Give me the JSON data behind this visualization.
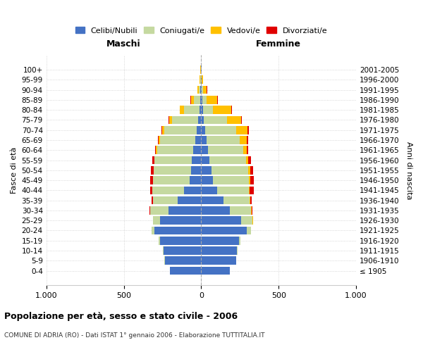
{
  "age_groups": [
    "100+",
    "95-99",
    "90-94",
    "85-89",
    "80-84",
    "75-79",
    "70-74",
    "65-69",
    "60-64",
    "55-59",
    "50-54",
    "45-49",
    "40-44",
    "35-39",
    "30-34",
    "25-29",
    "20-24",
    "15-19",
    "10-14",
    "5-9",
    "0-4"
  ],
  "birth_years": [
    "≤ 1905",
    "1906-1910",
    "1911-1915",
    "1916-1920",
    "1921-1925",
    "1926-1930",
    "1931-1935",
    "1936-1940",
    "1941-1945",
    "1946-1950",
    "1951-1955",
    "1956-1960",
    "1961-1965",
    "1966-1970",
    "1971-1975",
    "1976-1980",
    "1981-1985",
    "1986-1990",
    "1991-1995",
    "1996-2000",
    "2001-2005"
  ],
  "maschi": {
    "celibi": [
      2,
      3,
      4,
      8,
      12,
      18,
      30,
      40,
      50,
      60,
      65,
      75,
      110,
      150,
      210,
      265,
      300,
      265,
      245,
      235,
      200
    ],
    "coniugati": [
      1,
      4,
      12,
      40,
      100,
      170,
      210,
      225,
      235,
      240,
      240,
      235,
      205,
      160,
      120,
      45,
      20,
      8,
      4,
      2,
      1
    ],
    "vedovi": [
      1,
      2,
      8,
      18,
      25,
      18,
      12,
      8,
      6,
      4,
      3,
      2,
      2,
      1,
      1,
      1,
      0,
      0,
      0,
      0,
      0
    ],
    "divorziati": [
      0,
      0,
      0,
      2,
      2,
      4,
      6,
      8,
      8,
      12,
      15,
      18,
      12,
      8,
      4,
      2,
      1,
      1,
      0,
      0,
      0
    ]
  },
  "femmine": {
    "nubili": [
      2,
      2,
      4,
      6,
      10,
      15,
      25,
      35,
      45,
      55,
      65,
      75,
      105,
      145,
      185,
      260,
      295,
      245,
      230,
      225,
      185
    ],
    "coniugate": [
      1,
      3,
      8,
      28,
      65,
      150,
      200,
      215,
      225,
      235,
      240,
      235,
      205,
      168,
      138,
      72,
      25,
      8,
      4,
      2,
      1
    ],
    "vedove": [
      2,
      7,
      25,
      70,
      120,
      95,
      75,
      45,
      25,
      15,
      10,
      6,
      4,
      2,
      1,
      1,
      0,
      0,
      0,
      0,
      0
    ],
    "divorziate": [
      0,
      0,
      1,
      2,
      2,
      4,
      6,
      8,
      10,
      15,
      20,
      22,
      25,
      12,
      6,
      3,
      1,
      0,
      0,
      0,
      0
    ]
  },
  "colors": {
    "celibi": "#4472c4",
    "coniugati": "#c5d9a0",
    "vedovi": "#ffc000",
    "divorziati": "#e00000"
  },
  "legend_labels": [
    "Celibi/Nubili",
    "Coniugati/e",
    "Vedovi/e",
    "Divorziati/e"
  ],
  "title": "Popolazione per età, sesso e stato civile - 2006",
  "subtitle": "COMUNE DI ADRIA (RO) - Dati ISTAT 1° gennaio 2006 - Elaborazione TUTTITALIA.IT",
  "xlabel_left": "Maschi",
  "xlabel_right": "Femmine",
  "ylabel_left": "Fasce di età",
  "ylabel_right": "Anni di nascita",
  "xlim": 1000,
  "background_color": "#ffffff"
}
